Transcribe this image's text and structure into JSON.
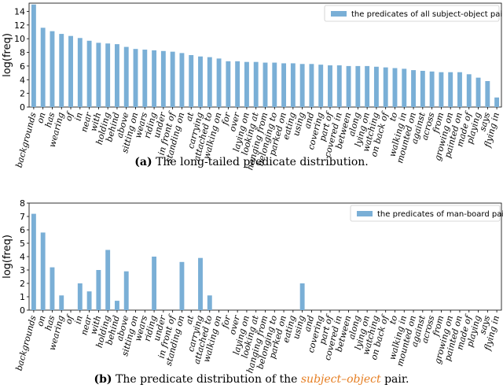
{
  "colors": {
    "bar": "#7aafd6",
    "axis": "#000000",
    "caption_italic": "#e67e22"
  },
  "chart_data": [
    {
      "type": "bar",
      "panel": "a",
      "ylabel": "log(freq)",
      "ylim": [
        0,
        15.2
      ],
      "yticks": [
        0,
        2,
        4,
        6,
        8,
        10,
        12,
        14
      ],
      "legend": "the predicates of all subject-object pairs",
      "legend_position": "top-right",
      "categories": [
        "backgrounds",
        "on",
        "has",
        "wearing",
        "of",
        "in",
        "near",
        "with",
        "holding",
        "behind",
        "above",
        "sitting on",
        "wears",
        "riding",
        "under",
        "in front of",
        "standing on",
        "at",
        "carrying",
        "attached to",
        "walking on",
        "for",
        "over",
        "laying on",
        "looking at",
        "hanging from",
        "belonging to",
        "parked on",
        "eating",
        "using",
        "and",
        "covering",
        "part of",
        "covered in",
        "between",
        "along",
        "lying on",
        "watching",
        "on back of",
        "to",
        "walking in",
        "mounted on",
        "against",
        "across",
        "from",
        "growing on",
        "painted on",
        "made of",
        "playing",
        "says",
        "flying in"
      ],
      "values": [
        15.0,
        11.6,
        11.1,
        10.7,
        10.4,
        10.1,
        9.7,
        9.4,
        9.3,
        9.2,
        8.8,
        8.5,
        8.4,
        8.3,
        8.2,
        8.1,
        7.9,
        7.6,
        7.4,
        7.3,
        7.1,
        6.7,
        6.7,
        6.6,
        6.6,
        6.5,
        6.5,
        6.4,
        6.4,
        6.3,
        6.3,
        6.2,
        6.1,
        6.1,
        6.0,
        6.0,
        6.0,
        5.9,
        5.8,
        5.7,
        5.6,
        5.4,
        5.3,
        5.2,
        5.1,
        5.1,
        5.1,
        4.8,
        4.3,
        3.8,
        1.4
      ],
      "caption_label": "(a)",
      "caption_text": "The long-tailed predicate distribution."
    },
    {
      "type": "bar",
      "panel": "b",
      "ylabel": "log(freq)",
      "ylim": [
        0,
        8
      ],
      "yticks": [
        0,
        1,
        2,
        3,
        4,
        5,
        6,
        7,
        8
      ],
      "legend": "the predicates of man-board pair",
      "legend_position": "top-right",
      "categories": [
        "backgrounds",
        "on",
        "has",
        "wearing",
        "of",
        "in",
        "near",
        "with",
        "holding",
        "behind",
        "above",
        "sitting on",
        "wears",
        "riding",
        "under",
        "in front of",
        "standing on",
        "at",
        "carrying",
        "attached to",
        "walking on",
        "for",
        "over",
        "laying on",
        "looking at",
        "hanging from",
        "belonging to",
        "parked on",
        "eating",
        "using",
        "and",
        "covering",
        "part of",
        "covered in",
        "between",
        "along",
        "lying on",
        "watching",
        "on back of",
        "to",
        "walking in",
        "mounted on",
        "against",
        "across",
        "from",
        "growing on",
        "painted on",
        "made of",
        "playing",
        "says",
        "flying in"
      ],
      "values": [
        7.2,
        5.8,
        3.2,
        1.1,
        0,
        2.0,
        1.4,
        3.0,
        4.5,
        0.7,
        2.9,
        0,
        0,
        4.0,
        0,
        0,
        3.6,
        0,
        3.9,
        1.1,
        0,
        0,
        0,
        0,
        0,
        0,
        0,
        0,
        0,
        2.0,
        0,
        0,
        0,
        0,
        0,
        0,
        0,
        0,
        0,
        0,
        0,
        0,
        0,
        0,
        0,
        0,
        0,
        0,
        0,
        0,
        0
      ],
      "caption_label": "(b)",
      "caption_text_pre": "The predicate distribution of the",
      "caption_text_italic": "subject–object",
      "caption_text_post": "pair."
    }
  ]
}
